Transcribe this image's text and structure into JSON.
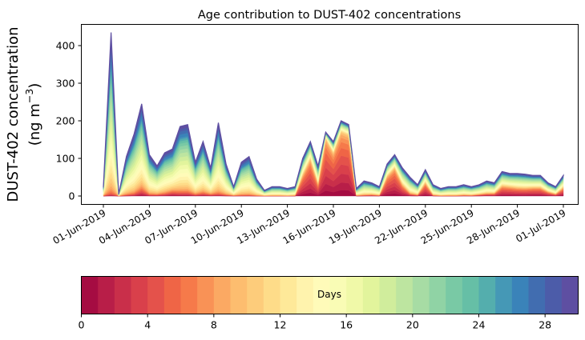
{
  "chart_data": {
    "type": "area",
    "stacked": true,
    "title": "Age contribution to DUST-402 concentrations",
    "ylabel_line1": "DUST-402 concentration",
    "ylabel_line2_prefix": "(ng m",
    "ylabel_line2_sup": "−3",
    "ylabel_line2_suffix": ")",
    "xlabel": "",
    "ylim": [
      -20,
      455
    ],
    "yticks": [
      0,
      100,
      200,
      300,
      400
    ],
    "ytick_labels": [
      "0",
      "100",
      "200",
      "300",
      "400"
    ],
    "xlim_days": [
      -0.55,
      31.8
    ],
    "xticks_days": [
      0,
      3,
      6,
      9,
      12,
      15,
      18,
      21,
      24,
      27,
      30
    ],
    "xtick_labels": [
      "01-Jun-2019",
      "04-Jun-2019",
      "07-Jun-2019",
      "10-Jun-2019",
      "13-Jun-2019",
      "16-Jun-2019",
      "19-Jun-2019",
      "22-Jun-2019",
      "25-Jun-2019",
      "28-Jun-2019",
      "01-Jul-2019"
    ],
    "x_days": [
      0,
      0.5,
      1,
      1.5,
      2,
      2.5,
      3,
      3.5,
      4,
      4.5,
      5,
      5.5,
      6,
      6.5,
      7,
      7.5,
      8,
      8.5,
      9,
      9.5,
      10,
      10.5,
      11,
      11.5,
      12,
      12.5,
      13,
      13.5,
      14,
      14.5,
      15,
      15.5,
      16,
      16.5,
      17,
      17.5,
      18,
      18.5,
      19,
      19.5,
      20,
      20.5,
      21,
      21.5,
      22,
      22.5,
      23,
      23.5,
      24,
      24.5,
      25,
      25.5,
      26,
      26.5,
      27,
      27.5,
      28,
      28.5,
      29,
      29.5,
      30
    ],
    "totals": [
      25,
      435,
      5,
      105,
      165,
      245,
      110,
      80,
      115,
      125,
      185,
      190,
      90,
      145,
      75,
      195,
      85,
      25,
      90,
      105,
      45,
      15,
      25,
      25,
      20,
      25,
      100,
      145,
      80,
      170,
      145,
      200,
      190,
      20,
      40,
      35,
      25,
      85,
      110,
      75,
      50,
      30,
      70,
      30,
      20,
      25,
      25,
      30,
      25,
      30,
      40,
      35,
      65,
      60,
      60,
      58,
      55,
      55,
      35,
      25,
      55
    ],
    "young_fraction": [
      0.02,
      0.01,
      0.05,
      0.04,
      0.06,
      0.14,
      0.06,
      0.08,
      0.1,
      0.18,
      0.1,
      0.1,
      0.08,
      0.1,
      0.1,
      0.05,
      0.05,
      0.08,
      0.02,
      0.02,
      0.02,
      0.05,
      0.02,
      0.02,
      0.02,
      0.05,
      0.7,
      0.8,
      0.55,
      0.95,
      0.88,
      0.92,
      0.92,
      0.08,
      0.08,
      0.15,
      0.1,
      0.75,
      0.8,
      0.55,
      0.2,
      0.15,
      0.65,
      0.1,
      0.05,
      0.05,
      0.05,
      0.1,
      0.1,
      0.2,
      0.25,
      0.3,
      0.55,
      0.55,
      0.5,
      0.5,
      0.55,
      0.55,
      0.45,
      0.3,
      0.55
    ],
    "colorbar": {
      "label": "Days",
      "range": [
        0,
        30
      ],
      "ticks": [
        0,
        4,
        8,
        12,
        16,
        20,
        24,
        28
      ],
      "tick_labels": [
        "0",
        "4",
        "8",
        "12",
        "16",
        "20",
        "24",
        "28"
      ],
      "colors": [
        "#a50c42",
        "#b81e48",
        "#c92f4a",
        "#d9404b",
        "#e4524b",
        "#ef6546",
        "#f67a4a",
        "#f99256",
        "#fba963",
        "#fdbd6f",
        "#fdcc7b",
        "#fedc89",
        "#fee999",
        "#fff3ad",
        "#fffbb9",
        "#f9fcb5",
        "#f0f9a8",
        "#e2f49c",
        "#d0ed9c",
        "#bde5a0",
        "#a7dca4",
        "#90d3a5",
        "#79c9a5",
        "#66bfa6",
        "#54aead",
        "#4598b6",
        "#3a83b9",
        "#416db0",
        "#4c5ca9",
        "#5e4fa2"
      ]
    }
  }
}
